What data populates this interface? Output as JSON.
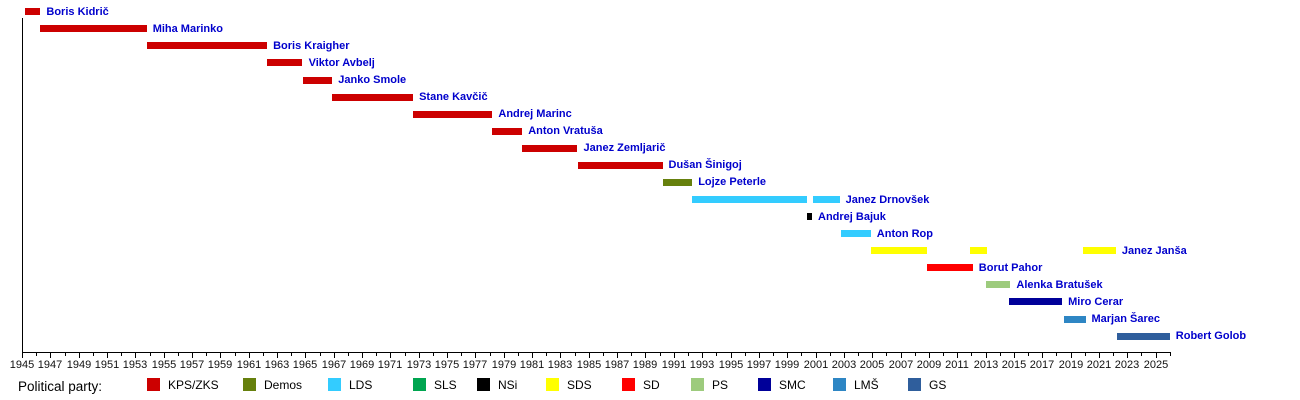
{
  "chart_data": {
    "type": "timeline",
    "description": "Gantt-style timeline of heads of government with party colors",
    "legend_title": "Political party:",
    "label_color": "#0000cc",
    "axis": {
      "unit": "year",
      "min": 1945,
      "max": 2026.3,
      "tick_interval": 1,
      "label_interval": 2,
      "tick_labels": [
        1945,
        1947,
        1949,
        1951,
        1953,
        1955,
        1957,
        1959,
        1961,
        1963,
        1965,
        1967,
        1969,
        1971,
        1973,
        1975,
        1977,
        1979,
        1981,
        1983,
        1985,
        1987,
        1989,
        1991,
        1993,
        1995,
        1997,
        1999,
        2001,
        2003,
        2005,
        2007,
        2009,
        2011,
        2013,
        2015,
        2017,
        2019,
        2021,
        2023,
        2025
      ]
    },
    "parties": [
      {
        "label": "KPS/ZKS",
        "color": "#cc0000"
      },
      {
        "label": "Demos",
        "color": "#66800d"
      },
      {
        "label": "LDS",
        "color": "#33ccff"
      },
      {
        "label": "SLS",
        "color": "#00a550"
      },
      {
        "label": "NSi",
        "color": "#000000"
      },
      {
        "label": "SDS",
        "color": "#ffff00"
      },
      {
        "label": "SD",
        "color": "#ff0000"
      },
      {
        "label": "PS",
        "color": "#9dcb7d"
      },
      {
        "label": "SMC",
        "color": "#000099"
      },
      {
        "label": "LMŠ",
        "color": "#2e86c4"
      },
      {
        "label": "GS",
        "color": "#2f5e9c"
      }
    ],
    "rows": [
      {
        "name": "Boris Kidrič",
        "party": "KPS/ZKS",
        "segments": [
          [
            1945.2,
            1946.3
          ]
        ]
      },
      {
        "name": "Miha Marinko",
        "party": "KPS/ZKS",
        "segments": [
          [
            1946.3,
            1953.8
          ]
        ]
      },
      {
        "name": "Boris Kraigher",
        "party": "KPS/ZKS",
        "segments": [
          [
            1953.8,
            1962.3
          ]
        ]
      },
      {
        "name": "Viktor Avbelj",
        "party": "KPS/ZKS",
        "segments": [
          [
            1962.3,
            1964.8
          ]
        ]
      },
      {
        "name": "Janko Smole",
        "party": "KPS/ZKS",
        "segments": [
          [
            1964.8,
            1966.9
          ]
        ]
      },
      {
        "name": "Stane Kavčič",
        "party": "KPS/ZKS",
        "segments": [
          [
            1966.9,
            1972.6
          ]
        ]
      },
      {
        "name": "Andrej Marinc",
        "party": "KPS/ZKS",
        "segments": [
          [
            1972.6,
            1978.2
          ]
        ]
      },
      {
        "name": "Anton Vratuša",
        "party": "KPS/ZKS",
        "segments": [
          [
            1978.2,
            1980.3
          ]
        ]
      },
      {
        "name": "Janez Zemljarič",
        "party": "KPS/ZKS",
        "segments": [
          [
            1980.3,
            1984.2
          ]
        ]
      },
      {
        "name": "Dušan Šinigoj",
        "party": "KPS/ZKS",
        "segments": [
          [
            1984.2,
            1990.2
          ]
        ]
      },
      {
        "name": "Lojze Peterle",
        "party": "Demos",
        "segments": [
          [
            1990.2,
            1992.3
          ]
        ]
      },
      {
        "name": "Janez Drnovšek",
        "party": "LDS",
        "segments": [
          [
            1992.3,
            2000.4
          ],
          [
            2000.85,
            2002.7
          ]
        ]
      },
      {
        "name": "Andrej Bajuk",
        "party": "NSi",
        "segments": [
          [
            2000.4,
            2000.75
          ]
        ]
      },
      {
        "name": "Anton Rop",
        "party": "LDS",
        "segments": [
          [
            2002.8,
            2004.9
          ]
        ]
      },
      {
        "name": "Janez Janša",
        "party": "SDS",
        "segments": [
          [
            2004.9,
            2008.9
          ],
          [
            2011.9,
            2013.1
          ],
          [
            2019.9,
            2022.2
          ]
        ]
      },
      {
        "name": "Borut Pahor",
        "party": "SD",
        "segments": [
          [
            2008.85,
            2012.1
          ]
        ]
      },
      {
        "name": "Alenka Bratušek",
        "party": "PS",
        "segments": [
          [
            2013.0,
            2014.75
          ]
        ]
      },
      {
        "name": "Miro Cerar",
        "party": "SMC",
        "segments": [
          [
            2014.65,
            2018.4
          ]
        ]
      },
      {
        "name": "Marjan Šarec",
        "party": "LMŠ",
        "segments": [
          [
            2018.5,
            2020.05
          ]
        ]
      },
      {
        "name": "Robert Golob",
        "party": "GS",
        "segments": [
          [
            2022.3,
            2026.0
          ]
        ]
      }
    ]
  }
}
